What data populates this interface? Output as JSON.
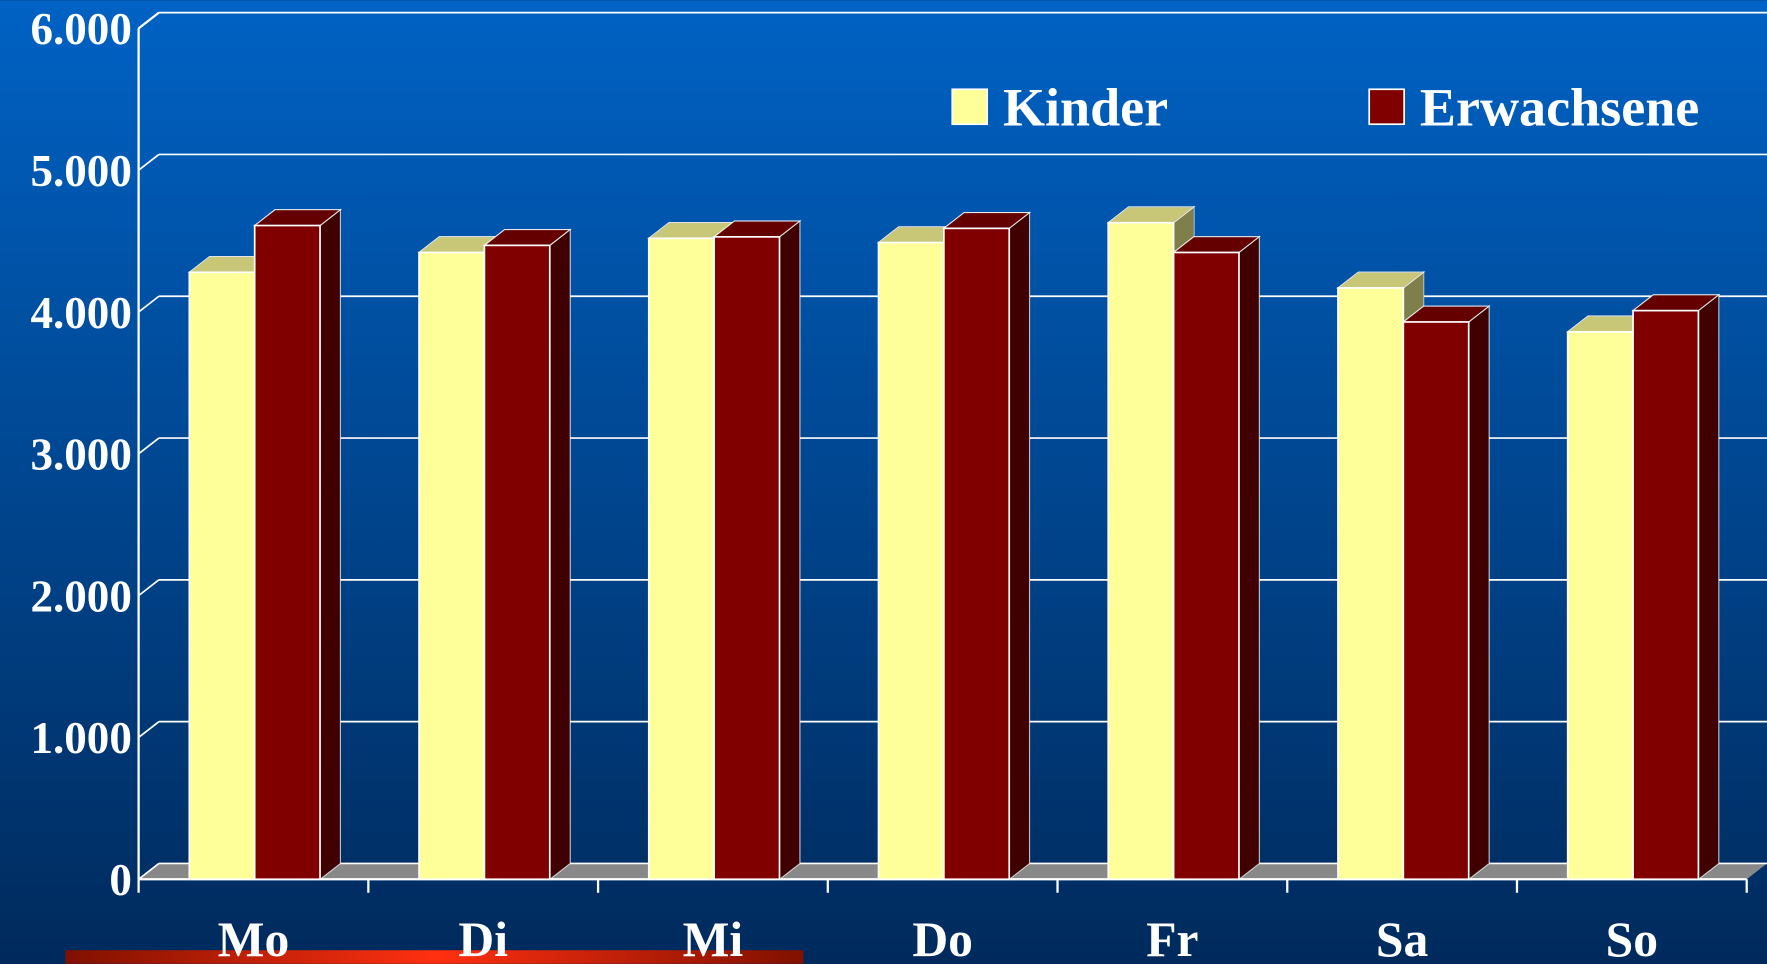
{
  "chart_data": {
    "type": "bar3d",
    "categories": [
      "Mo",
      "Di",
      "Mi",
      "Do",
      "Fr",
      "Sa",
      "So"
    ],
    "series": [
      {
        "name": "Kinder",
        "color": "#ffff99",
        "values": [
          4280,
          4420,
          4520,
          4490,
          4630,
          4170,
          3860
        ]
      },
      {
        "name": "Erwachsene",
        "color": "#800000",
        "values": [
          4610,
          4470,
          4530,
          4590,
          4420,
          3930,
          4010
        ]
      }
    ],
    "ylim": [
      0,
      6000
    ],
    "yticks": [
      0,
      {
        "value": 1000,
        "label": "1.000"
      },
      {
        "value": 2000,
        "label": "2.000"
      },
      {
        "value": 3000,
        "label": "3.000"
      },
      {
        "value": 4000,
        "label": "4.000"
      },
      {
        "value": 5000,
        "label": "5.000"
      },
      {
        "value": 6000,
        "label": "6.000"
      }
    ],
    "grid": true,
    "legend": "top-right"
  }
}
